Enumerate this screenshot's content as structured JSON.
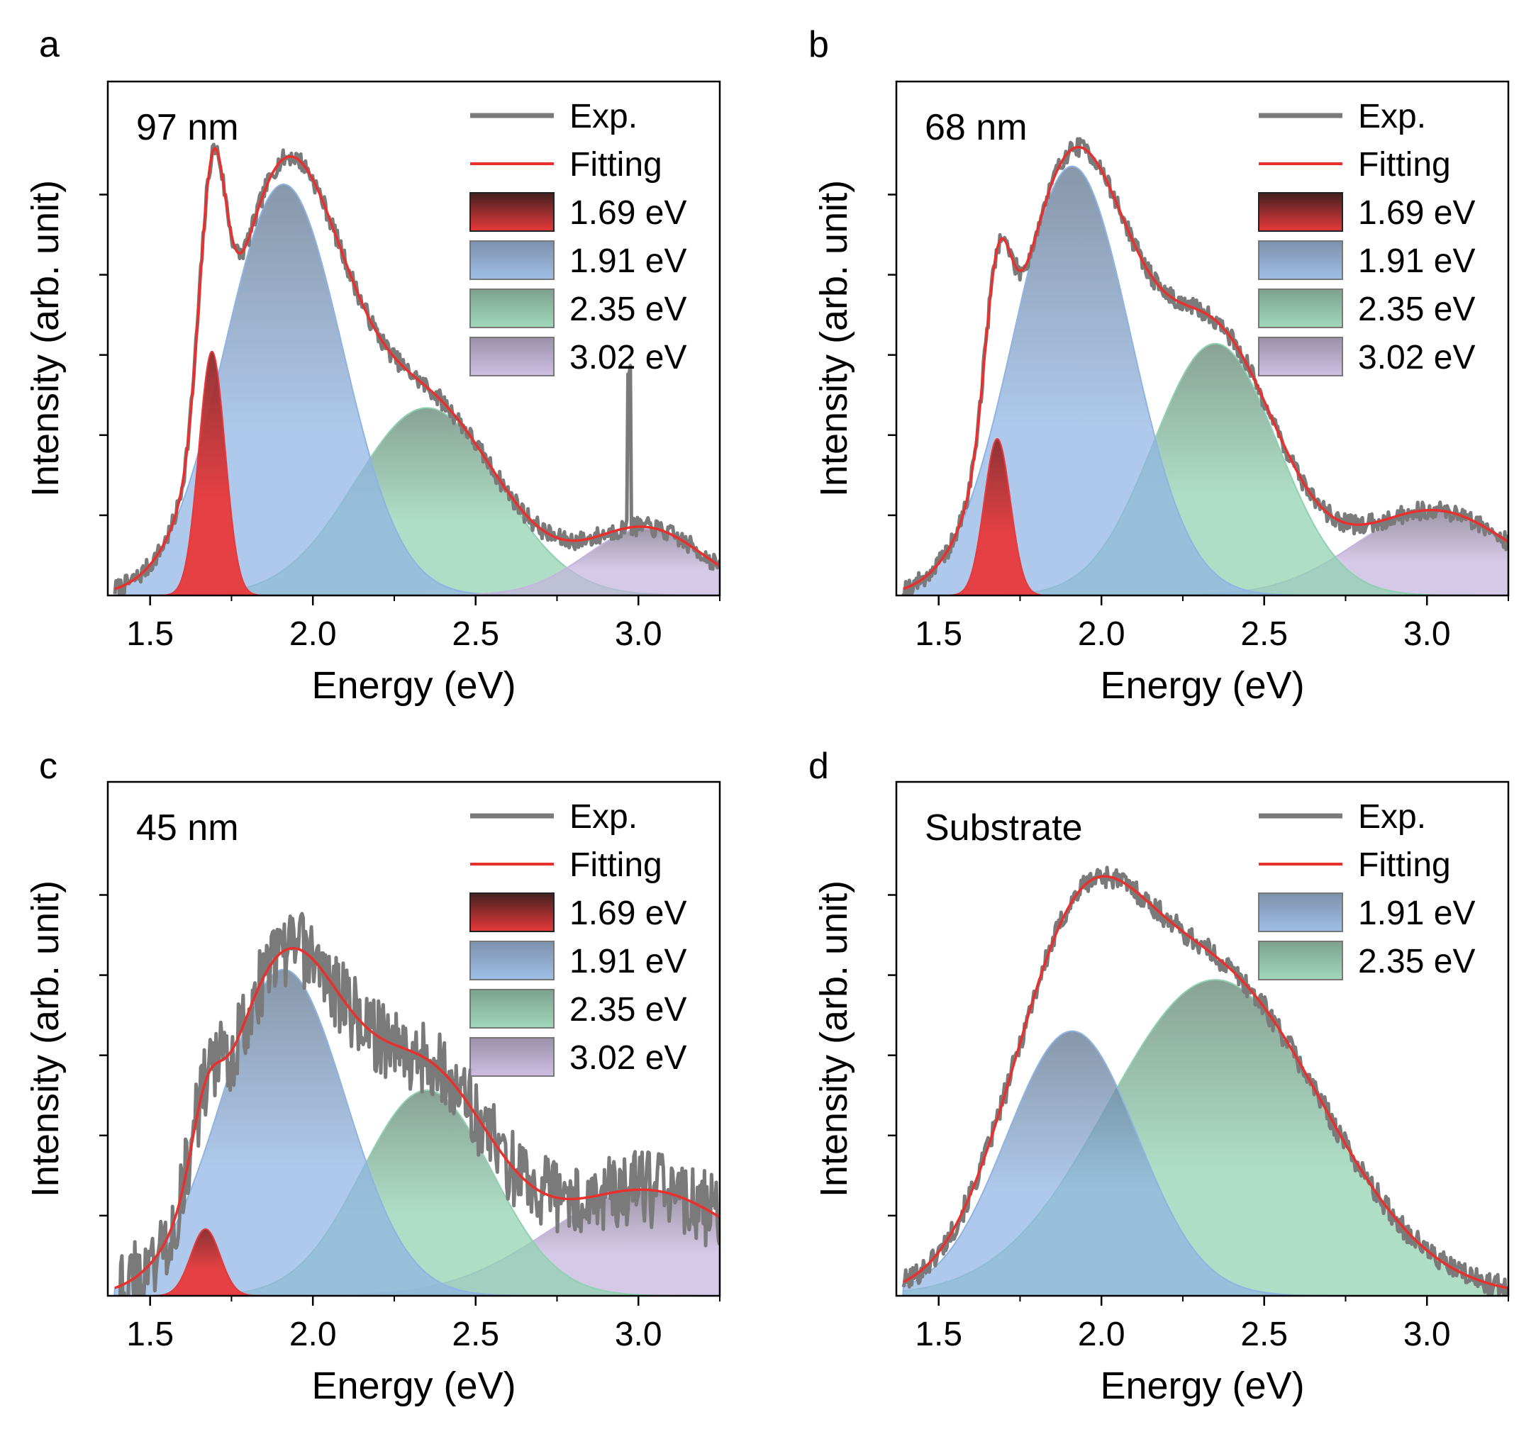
{
  "figure": {
    "colors": {
      "exp": "#7a7a7a",
      "fitting": "#e8312e",
      "1.69 eV": "#e8393a",
      "1.91 eV": "#8fb4e3",
      "2.35 eV": "#8fd1b0",
      "3.02 eV": "#c5b4df"
    }
  },
  "chart_data": [
    {
      "type": "line",
      "panel": "a",
      "sample_label": "97 nm",
      "xlabel": "Energy (eV)",
      "ylabel": "Intensity (arb. unit)",
      "xlim": [
        1.37,
        3.25
      ],
      "ylim": [
        0,
        1.0
      ],
      "x_ticks": [
        1.5,
        2.0,
        2.5,
        3.0
      ],
      "x_tick_labels": [
        "1.5",
        "2.0",
        "2.5",
        "3.0"
      ],
      "y_ticks": [
        0.2,
        0.4,
        0.6,
        0.8,
        1.0
      ],
      "legend": [
        "Exp.",
        "Fitting",
        "1.69 eV",
        "1.91 eV",
        "2.35 eV",
        "3.02 eV"
      ],
      "components": [
        {
          "name": "1.69 eV",
          "center": 1.69,
          "amplitude": 0.475,
          "sigma": 0.04,
          "color": "#e8393a"
        },
        {
          "name": "1.91 eV",
          "center": 1.91,
          "amplitude": 0.8,
          "sigma": 0.18,
          "color": "#8fb4e3"
        },
        {
          "name": "2.35 eV",
          "center": 2.35,
          "amplitude": 0.365,
          "sigma": 0.22,
          "color": "#8fd1b0"
        },
        {
          "name": "3.02 eV",
          "center": 3.02,
          "amplitude": 0.13,
          "sigma": 0.18,
          "color": "#c5b4df"
        }
      ],
      "noise_level": 0.018,
      "spikes": [
        {
          "x": 2.97,
          "height": 0.31
        }
      ],
      "legend_swatch_labels": [
        "1.69 eV",
        "1.91 eV",
        "2.35 eV",
        "3.02 eV"
      ]
    },
    {
      "type": "line",
      "panel": "b",
      "sample_label": "68 nm",
      "xlabel": "Energy (eV)",
      "ylabel": "Intensity (arb. unit)",
      "xlim": [
        1.37,
        3.25
      ],
      "ylim": [
        0,
        1.0
      ],
      "x_ticks": [
        1.5,
        2.0,
        2.5,
        3.0
      ],
      "x_tick_labels": [
        "1.5",
        "2.0",
        "2.5",
        "3.0"
      ],
      "y_ticks": [
        0.2,
        0.4,
        0.6,
        0.8,
        1.0
      ],
      "legend": [
        "Exp.",
        "Fitting",
        "1.69 eV",
        "1.91 eV",
        "2.35 eV",
        "3.02 eV"
      ],
      "components": [
        {
          "name": "1.69 eV",
          "center": 1.68,
          "amplitude": 0.305,
          "sigma": 0.04,
          "color": "#e8393a"
        },
        {
          "name": "1.91 eV",
          "center": 1.91,
          "amplitude": 0.835,
          "sigma": 0.18,
          "color": "#8fb4e3"
        },
        {
          "name": "2.35 eV",
          "center": 2.35,
          "amplitude": 0.49,
          "sigma": 0.19,
          "color": "#8fd1b0"
        },
        {
          "name": "3.02 eV",
          "center": 3.02,
          "amplitude": 0.165,
          "sigma": 0.24,
          "color": "#c5b4df"
        }
      ],
      "noise_level": 0.018,
      "spikes": [],
      "legend_swatch_labels": [
        "1.69 eV",
        "1.91 eV",
        "2.35 eV",
        "3.02 eV"
      ]
    },
    {
      "type": "line",
      "panel": "c",
      "sample_label": "45 nm",
      "xlabel": "Energy (eV)",
      "ylabel": "Intensity (arb. unit)",
      "xlim": [
        1.37,
        3.25
      ],
      "ylim": [
        0,
        1.0
      ],
      "x_ticks": [
        1.5,
        2.0,
        2.5,
        3.0
      ],
      "x_tick_labels": [
        "1.5",
        "2.0",
        "2.5",
        "3.0"
      ],
      "y_ticks": [
        0.2,
        0.4,
        0.6,
        0.8,
        1.0
      ],
      "legend": [
        "Exp.",
        "Fitting",
        "1.69 eV",
        "1.91 eV",
        "2.35 eV",
        "3.02 eV"
      ],
      "components": [
        {
          "name": "1.69 eV",
          "center": 1.67,
          "amplitude": 0.13,
          "sigma": 0.045,
          "color": "#e8393a"
        },
        {
          "name": "1.91 eV",
          "center": 1.91,
          "amplitude": 0.635,
          "sigma": 0.19,
          "color": "#8fb4e3"
        },
        {
          "name": "2.35 eV",
          "center": 2.35,
          "amplitude": 0.4,
          "sigma": 0.2,
          "color": "#8fd1b0"
        },
        {
          "name": "3.02 eV",
          "center": 3.02,
          "amplitude": 0.205,
          "sigma": 0.3,
          "color": "#c5b4df"
        }
      ],
      "noise_level": 0.075,
      "spikes": [],
      "legend_swatch_labels": [
        "1.69 eV",
        "1.91 eV",
        "2.35 eV",
        "3.02 eV"
      ]
    },
    {
      "type": "line",
      "panel": "d",
      "sample_label": "Substrate",
      "xlabel": "Energy (eV)",
      "ylabel": "Intensity (arb. unit)",
      "xlim": [
        1.37,
        3.25
      ],
      "ylim": [
        0,
        1.0
      ],
      "x_ticks": [
        1.5,
        2.0,
        2.5,
        3.0
      ],
      "x_tick_labels": [
        "1.5",
        "2.0",
        "2.5",
        "3.0"
      ],
      "y_ticks": [
        0.2,
        0.4,
        0.6,
        0.8,
        1.0
      ],
      "legend": [
        "Exp.",
        "Fitting",
        "1.91 eV",
        "2.35 eV"
      ],
      "components": [
        {
          "name": "1.91 eV",
          "center": 1.91,
          "amplitude": 0.515,
          "sigma": 0.2,
          "color": "#8fb4e3"
        },
        {
          "name": "2.35 eV",
          "center": 2.35,
          "amplitude": 0.615,
          "sigma": 0.33,
          "color": "#8fd1b0"
        }
      ],
      "noise_level": 0.022,
      "spikes": [],
      "legend_swatch_labels": [
        "1.91 eV",
        "2.35 eV"
      ]
    }
  ]
}
